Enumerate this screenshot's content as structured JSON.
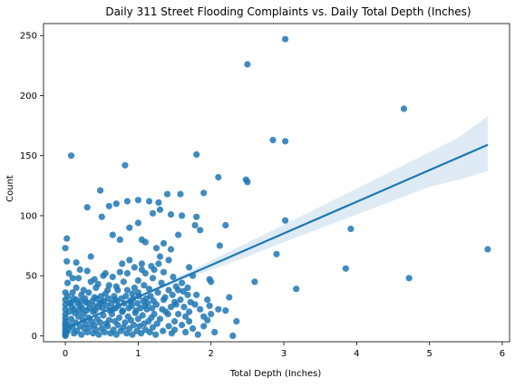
{
  "chart_data": {
    "type": "scatter",
    "title": "Daily 311 Street Flooding Complaints vs. Daily Total Depth (Inches)",
    "xlabel": "Total Depth (Inches)",
    "ylabel": "Count",
    "xlim": [
      -0.3,
      6.1
    ],
    "ylim": [
      -5,
      260
    ],
    "x_ticks": [
      0,
      1,
      2,
      3,
      4,
      5,
      6
    ],
    "y_ticks": [
      0,
      50,
      100,
      150,
      200,
      250
    ],
    "grid": false,
    "point_color": "#1f77b4",
    "series": [
      {
        "points": [
          [
            3.02,
            247
          ],
          [
            2.5,
            226
          ],
          [
            4.65,
            189
          ],
          [
            2.85,
            163
          ],
          [
            3.02,
            162
          ],
          [
            1.8,
            151
          ],
          [
            0.08,
            150
          ],
          [
            0.82,
            142
          ],
          [
            2.1,
            132
          ],
          [
            2.48,
            130
          ],
          [
            2.5,
            128
          ],
          [
            0.48,
            121
          ],
          [
            1.9,
            119
          ],
          [
            1.4,
            118
          ],
          [
            1.58,
            118
          ],
          [
            0.85,
            112
          ],
          [
            1.0,
            113
          ],
          [
            1.15,
            112
          ],
          [
            1.28,
            111
          ],
          [
            0.6,
            108
          ],
          [
            0.7,
            110
          ],
          [
            0.3,
            107
          ],
          [
            1.3,
            105
          ],
          [
            1.2,
            102
          ],
          [
            1.45,
            101
          ],
          [
            1.6,
            100
          ],
          [
            1.8,
            99
          ],
          [
            0.5,
            99
          ],
          [
            1.0,
            94
          ],
          [
            3.02,
            96
          ],
          [
            2.2,
            92
          ],
          [
            1.78,
            92
          ],
          [
            3.92,
            89
          ],
          [
            0.65,
            84
          ],
          [
            0.75,
            80
          ],
          [
            1.05,
            80
          ],
          [
            1.1,
            78
          ],
          [
            1.35,
            77
          ],
          [
            1.55,
            84
          ],
          [
            1.85,
            88
          ],
          [
            0.88,
            90
          ],
          [
            2.12,
            75
          ],
          [
            1.25,
            73
          ],
          [
            2.9,
            68
          ],
          [
            5.8,
            72
          ],
          [
            0.02,
            81
          ],
          [
            0.0,
            73
          ],
          [
            0.35,
            66
          ],
          [
            1.3,
            66
          ],
          [
            1.45,
            72
          ],
          [
            0.02,
            62
          ],
          [
            0.15,
            61
          ],
          [
            1.05,
            60
          ],
          [
            1.28,
            60
          ],
          [
            1.7,
            57
          ],
          [
            1.42,
            63
          ],
          [
            3.85,
            56
          ],
          [
            4.72,
            48
          ],
          [
            2.6,
            45
          ],
          [
            3.17,
            39
          ],
          [
            2.3,
            0
          ],
          [
            2.35,
            12
          ],
          [
            2.2,
            21
          ],
          [
            1.98,
            47
          ],
          [
            2.0,
            45
          ],
          [
            1.95,
            30
          ],
          [
            1.98,
            25
          ],
          [
            1.8,
            34
          ],
          [
            1.85,
            22
          ],
          [
            1.7,
            20
          ],
          [
            1.65,
            16
          ],
          [
            1.95,
            13
          ],
          [
            1.75,
            50
          ],
          [
            1.6,
            44
          ],
          [
            1.55,
            38
          ],
          [
            1.5,
            28
          ],
          [
            1.45,
            24
          ],
          [
            1.5,
            12
          ],
          [
            1.35,
            30
          ],
          [
            1.25,
            26
          ],
          [
            1.2,
            48
          ],
          [
            1.15,
            39
          ],
          [
            1.1,
            52
          ],
          [
            1.05,
            55
          ],
          [
            1.0,
            46
          ],
          [
            0.95,
            40
          ],
          [
            0.92,
            35
          ],
          [
            0.9,
            28
          ],
          [
            0.85,
            52
          ],
          [
            0.8,
            45
          ],
          [
            0.78,
            60
          ],
          [
            0.72,
            38
          ],
          [
            0.68,
            30
          ],
          [
            0.65,
            22
          ],
          [
            0.6,
            42
          ],
          [
            0.55,
            35
          ],
          [
            0.52,
            50
          ],
          [
            0.5,
            28
          ],
          [
            0.45,
            24
          ],
          [
            0.42,
            40
          ],
          [
            0.4,
            32
          ],
          [
            0.38,
            20
          ],
          [
            0.35,
            45
          ],
          [
            0.32,
            36
          ],
          [
            0.28,
            28
          ],
          [
            0.25,
            18
          ],
          [
            0.22,
            34
          ],
          [
            0.2,
            25
          ],
          [
            0.18,
            48
          ],
          [
            0.15,
            30
          ],
          [
            0.12,
            22
          ],
          [
            0.1,
            36
          ],
          [
            0.08,
            28
          ],
          [
            0.05,
            20
          ],
          [
            0.03,
            44
          ],
          [
            0.0,
            36
          ],
          [
            0.0,
            30
          ],
          [
            0.0,
            26
          ],
          [
            0.0,
            22
          ],
          [
            0.0,
            18
          ],
          [
            0.0,
            15
          ],
          [
            0.0,
            12
          ],
          [
            0.0,
            10
          ],
          [
            0.0,
            8
          ],
          [
            0.0,
            6
          ],
          [
            0.0,
            4
          ],
          [
            0.0,
            2
          ],
          [
            0.0,
            1
          ],
          [
            0.0,
            0
          ],
          [
            0.02,
            3
          ],
          [
            0.04,
            5
          ],
          [
            0.06,
            9
          ],
          [
            0.08,
            14
          ],
          [
            0.1,
            7
          ],
          [
            0.12,
            2
          ],
          [
            0.14,
            11
          ],
          [
            0.16,
            4
          ],
          [
            0.18,
            16
          ],
          [
            0.2,
            8
          ],
          [
            0.22,
            1
          ],
          [
            0.24,
            13
          ],
          [
            0.26,
            6
          ],
          [
            0.28,
            10
          ],
          [
            0.3,
            3
          ],
          [
            0.32,
            15
          ],
          [
            0.34,
            7
          ],
          [
            0.36,
            12
          ],
          [
            0.38,
            2
          ],
          [
            0.4,
            9
          ],
          [
            0.42,
            5
          ],
          [
            0.44,
            14
          ],
          [
            0.46,
            1
          ],
          [
            0.48,
            11
          ],
          [
            0.5,
            6
          ],
          [
            0.52,
            17
          ],
          [
            0.54,
            3
          ],
          [
            0.56,
            10
          ],
          [
            0.58,
            8
          ],
          [
            0.6,
            13
          ],
          [
            0.62,
            2
          ],
          [
            0.64,
            18
          ],
          [
            0.66,
            5
          ],
          [
            0.68,
            12
          ],
          [
            0.7,
            1
          ],
          [
            0.72,
            9
          ],
          [
            0.74,
            15
          ],
          [
            0.76,
            4
          ],
          [
            0.78,
            20
          ],
          [
            0.8,
            7
          ],
          [
            0.82,
            11
          ],
          [
            0.84,
            2
          ],
          [
            0.86,
            16
          ],
          [
            0.88,
            6
          ],
          [
            0.9,
            13
          ],
          [
            0.92,
            1
          ],
          [
            0.94,
            9
          ],
          [
            0.96,
            19
          ],
          [
            0.98,
            4
          ],
          [
            1.0,
            14
          ],
          [
            1.02,
            8
          ],
          [
            1.04,
            2
          ],
          [
            1.06,
            17
          ],
          [
            1.08,
            10
          ],
          [
            1.1,
            5
          ],
          [
            1.12,
            22
          ],
          [
            1.14,
            12
          ],
          [
            1.16,
            3
          ],
          [
            1.18,
            15
          ],
          [
            1.2,
            7
          ],
          [
            1.22,
            18
          ],
          [
            1.24,
            1
          ],
          [
            1.26,
            10
          ],
          [
            1.3,
            14
          ],
          [
            1.34,
            4
          ],
          [
            1.38,
            20
          ],
          [
            1.42,
            8
          ],
          [
            1.46,
            2
          ],
          [
            1.5,
            5
          ],
          [
            1.55,
            18
          ],
          [
            1.6,
            9
          ],
          [
            1.65,
            3
          ],
          [
            1.7,
            12
          ],
          [
            1.75,
            6
          ],
          [
            1.82,
            1
          ],
          [
            1.9,
            8
          ],
          [
            2.05,
            3
          ],
          [
            0.03,
            33
          ],
          [
            0.06,
            27
          ],
          [
            0.09,
            24
          ],
          [
            0.11,
            31
          ],
          [
            0.13,
            19
          ],
          [
            0.17,
            27
          ],
          [
            0.19,
            21
          ],
          [
            0.21,
            29
          ],
          [
            0.23,
            23
          ],
          [
            0.27,
            31
          ],
          [
            0.29,
            21
          ],
          [
            0.31,
            27
          ],
          [
            0.33,
            23
          ],
          [
            0.37,
            29
          ],
          [
            0.39,
            25
          ],
          [
            0.41,
            21
          ],
          [
            0.43,
            31
          ],
          [
            0.47,
            27
          ],
          [
            0.49,
            33
          ],
          [
            0.51,
            23
          ],
          [
            0.53,
            29
          ],
          [
            0.57,
            25
          ],
          [
            0.59,
            31
          ],
          [
            0.61,
            21
          ],
          [
            0.63,
            27
          ],
          [
            0.67,
            33
          ],
          [
            0.69,
            23
          ],
          [
            0.71,
            29
          ],
          [
            0.73,
            25
          ],
          [
            0.77,
            31
          ],
          [
            0.79,
            21
          ],
          [
            0.81,
            27
          ],
          [
            0.83,
            33
          ],
          [
            0.87,
            23
          ],
          [
            0.89,
            29
          ],
          [
            0.91,
            25
          ],
          [
            0.93,
            31
          ],
          [
            0.97,
            21
          ],
          [
            0.99,
            27
          ],
          [
            1.01,
            33
          ],
          [
            1.03,
            23
          ],
          [
            1.07,
            29
          ],
          [
            1.09,
            25
          ],
          [
            1.11,
            31
          ],
          [
            1.13,
            27
          ],
          [
            1.17,
            33
          ],
          [
            1.19,
            23
          ],
          [
            1.21,
            29
          ],
          [
            1.27,
            36
          ],
          [
            1.33,
            22
          ],
          [
            1.37,
            32
          ],
          [
            1.41,
            18
          ],
          [
            1.47,
            34
          ],
          [
            1.52,
            26
          ],
          [
            1.58,
            30
          ],
          [
            1.63,
            24
          ],
          [
            1.68,
            34
          ],
          [
            1.72,
            28
          ],
          [
            0.05,
            52
          ],
          [
            0.1,
            48
          ],
          [
            0.2,
            55
          ],
          [
            0.3,
            54
          ],
          [
            0.4,
            47
          ],
          [
            0.55,
            52
          ],
          [
            0.65,
            49
          ],
          [
            0.75,
            53
          ],
          [
            0.88,
            63
          ],
          [
            0.95,
            57
          ],
          [
            1.18,
            58
          ],
          [
            1.22,
            55
          ],
          [
            1.35,
            53
          ],
          [
            1.48,
            49
          ],
          [
            0.15,
            40
          ],
          [
            0.25,
            38
          ],
          [
            0.45,
            43
          ],
          [
            0.58,
            38
          ],
          [
            0.7,
            41
          ],
          [
            0.85,
            38
          ],
          [
            1.0,
            36
          ],
          [
            1.08,
            42
          ],
          [
            1.32,
            44
          ],
          [
            1.42,
            38
          ],
          [
            1.52,
            41
          ],
          [
            1.62,
            37
          ],
          [
            1.68,
            40
          ],
          [
            1.78,
            26
          ],
          [
            1.9,
            16
          ],
          [
            2.0,
            18
          ],
          [
            2.1,
            22
          ],
          [
            2.25,
            32
          ]
        ]
      }
    ],
    "regression": {
      "x_range": [
        0.0,
        5.8
      ],
      "line": [
        [
          0.0,
          6.0
        ],
        [
          1.0,
          32.4
        ],
        [
          2.0,
          58.8
        ],
        [
          3.0,
          85.2
        ],
        [
          4.0,
          111.6
        ],
        [
          5.0,
          138.0
        ],
        [
          5.8,
          159.0
        ]
      ],
      "ci_upper": [
        [
          0.0,
          8.0
        ],
        [
          0.5,
          19.6
        ],
        [
          1.0,
          33.6
        ],
        [
          1.5,
          47.6
        ],
        [
          2.0,
          62.5
        ],
        [
          2.5,
          77.5
        ],
        [
          3.0,
          92.5
        ],
        [
          3.5,
          107.5
        ],
        [
          4.0,
          122.6
        ],
        [
          4.5,
          137.8
        ],
        [
          5.0,
          153.0
        ],
        [
          5.4,
          165.0
        ],
        [
          5.8,
          183.0
        ]
      ],
      "ci_lower": [
        [
          0.0,
          4.0
        ],
        [
          0.5,
          18.4
        ],
        [
          1.0,
          31.2
        ],
        [
          1.5,
          44.0
        ],
        [
          2.0,
          55.0
        ],
        [
          2.5,
          66.0
        ],
        [
          3.0,
          78.0
        ],
        [
          3.5,
          89.5
        ],
        [
          4.0,
          101.0
        ],
        [
          4.5,
          112.5
        ],
        [
          5.0,
          124.0
        ],
        [
          5.4,
          130.0
        ],
        [
          5.8,
          137.0
        ]
      ],
      "line_color": "#1f77b4",
      "band_color": "#1f77b4"
    }
  }
}
